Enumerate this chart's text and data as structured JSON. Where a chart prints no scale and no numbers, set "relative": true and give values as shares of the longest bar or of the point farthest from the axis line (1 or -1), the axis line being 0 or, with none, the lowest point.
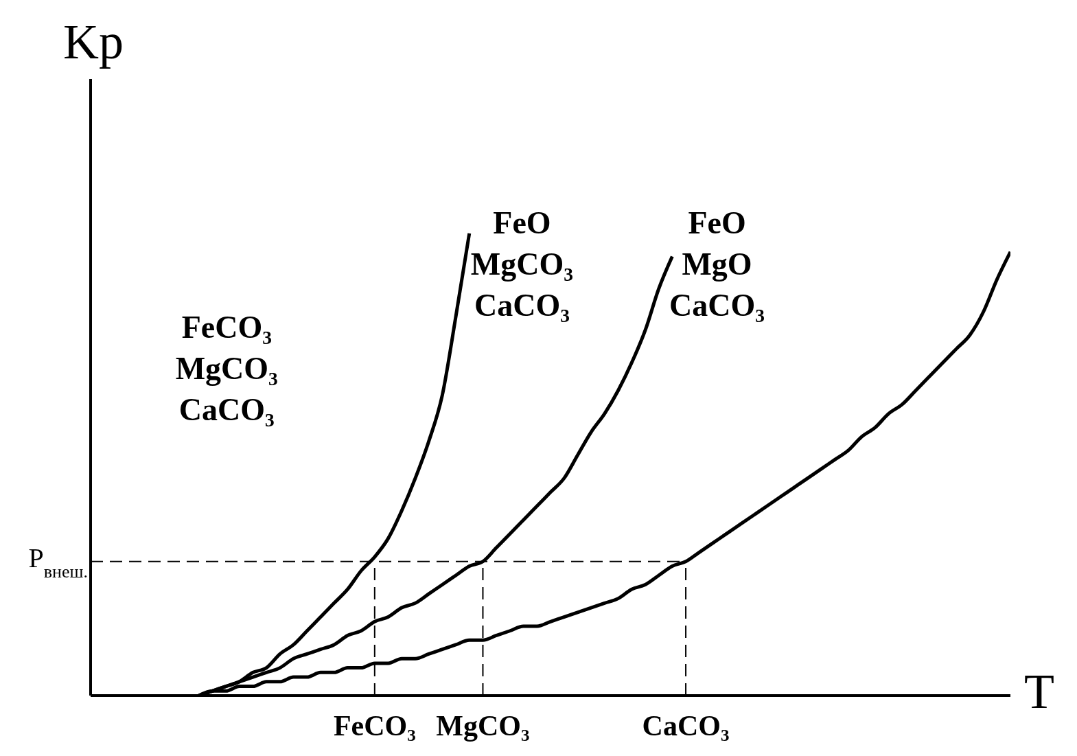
{
  "chart_data": {
    "type": "line",
    "relative": true,
    "xlabel": "T",
    "ylabel": "Kp",
    "categories": [
      null,
      null,
      null,
      null,
      null,
      null,
      null,
      null,
      null,
      null,
      null,
      null,
      null,
      null,
      null,
      null,
      null,
      null,
      null,
      null,
      null,
      "FeCO₃",
      null,
      null,
      null,
      null,
      null,
      null,
      null,
      "MgCO₃",
      null,
      null,
      null,
      null,
      null,
      null,
      null,
      null,
      null,
      null,
      null,
      null,
      null,
      null,
      "CaCO₃",
      null,
      null,
      null,
      null,
      null,
      null,
      null,
      null,
      null,
      null,
      null,
      null,
      null,
      null,
      null,
      null,
      null,
      null,
      null,
      null,
      null,
      null,
      null,
      null
    ],
    "tick_labels": "x",
    "marker": "none",
    "line_style": "solid",
    "series": [
      {
        "color": "#000000",
        "values": [
          null,
          null,
          null,
          null,
          null,
          null,
          null,
          null,
          0,
          0.01,
          0.02,
          0.03,
          0.05,
          0.06,
          0.09,
          0.11,
          0.14,
          0.17,
          0.2,
          0.23,
          0.27,
          0.3,
          0.34,
          0.4,
          0.47,
          0.55,
          0.65,
          0.82,
          1,
          null,
          null,
          null,
          null,
          null,
          null,
          null,
          null,
          null,
          null,
          null,
          null,
          null,
          null,
          null,
          null,
          null,
          null,
          null,
          null,
          null,
          null,
          null,
          null,
          null,
          null,
          null,
          null,
          null,
          null,
          null,
          null,
          null,
          null,
          null,
          null,
          null,
          null,
          null,
          null
        ]
      },
      {
        "color": "#000000",
        "values": [
          null,
          null,
          null,
          null,
          null,
          null,
          null,
          null,
          0,
          0.01,
          0.02,
          0.03,
          0.04,
          0.05,
          0.06,
          0.08,
          0.09,
          0.1,
          0.11,
          0.13,
          0.14,
          0.16,
          0.17,
          0.19,
          0.2,
          0.22,
          0.24,
          0.26,
          0.28,
          0.29,
          0.32,
          0.35,
          0.38,
          0.41,
          0.44,
          0.47,
          0.52,
          0.57,
          0.61,
          0.66,
          0.72,
          0.79,
          0.88,
          0.95,
          null,
          null,
          null,
          null,
          null,
          null,
          null,
          null,
          null,
          null,
          null,
          null,
          null,
          null,
          null,
          null,
          null,
          null,
          null,
          null,
          null,
          null,
          null,
          null,
          null
        ]
      },
      {
        "color": "#000000",
        "values": [
          null,
          null,
          null,
          null,
          null,
          null,
          null,
          null,
          0,
          0.01,
          0.01,
          0.02,
          0.02,
          0.03,
          0.03,
          0.04,
          0.04,
          0.05,
          0.05,
          0.06,
          0.06,
          0.07,
          0.07,
          0.08,
          0.08,
          0.09,
          0.1,
          0.11,
          0.12,
          0.12,
          0.13,
          0.14,
          0.15,
          0.15,
          0.16,
          0.17,
          0.18,
          0.19,
          0.2,
          0.21,
          0.23,
          0.24,
          0.26,
          0.28,
          0.29,
          0.31,
          0.33,
          0.35,
          0.37,
          0.39,
          0.41,
          0.43,
          0.45,
          0.47,
          0.49,
          0.51,
          0.53,
          0.56,
          0.58,
          0.61,
          0.63,
          0.66,
          0.69,
          0.72,
          0.75,
          0.78,
          0.83,
          0.9,
          0.96
        ]
      }
    ],
    "ref_lines": [
      {
        "axis": "y",
        "value": 0.29,
        "label": "P$_{внеш.}$",
        "line_style": "dashed"
      },
      {
        "axis": "x",
        "value": "FeCO₃",
        "line_style": "dashed"
      },
      {
        "axis": "x",
        "value": "MgCO₃",
        "line_style": "dashed"
      },
      {
        "axis": "x",
        "value": "CaCO₃",
        "line_style": "dashed"
      }
    ],
    "annotations": [
      "FeCO₃\nMgCO₃\nCaCO₃",
      "FeO\nMgCO₃\nCaCO₃",
      "FeO\nMgO\nCaCO₃"
    ]
  }
}
